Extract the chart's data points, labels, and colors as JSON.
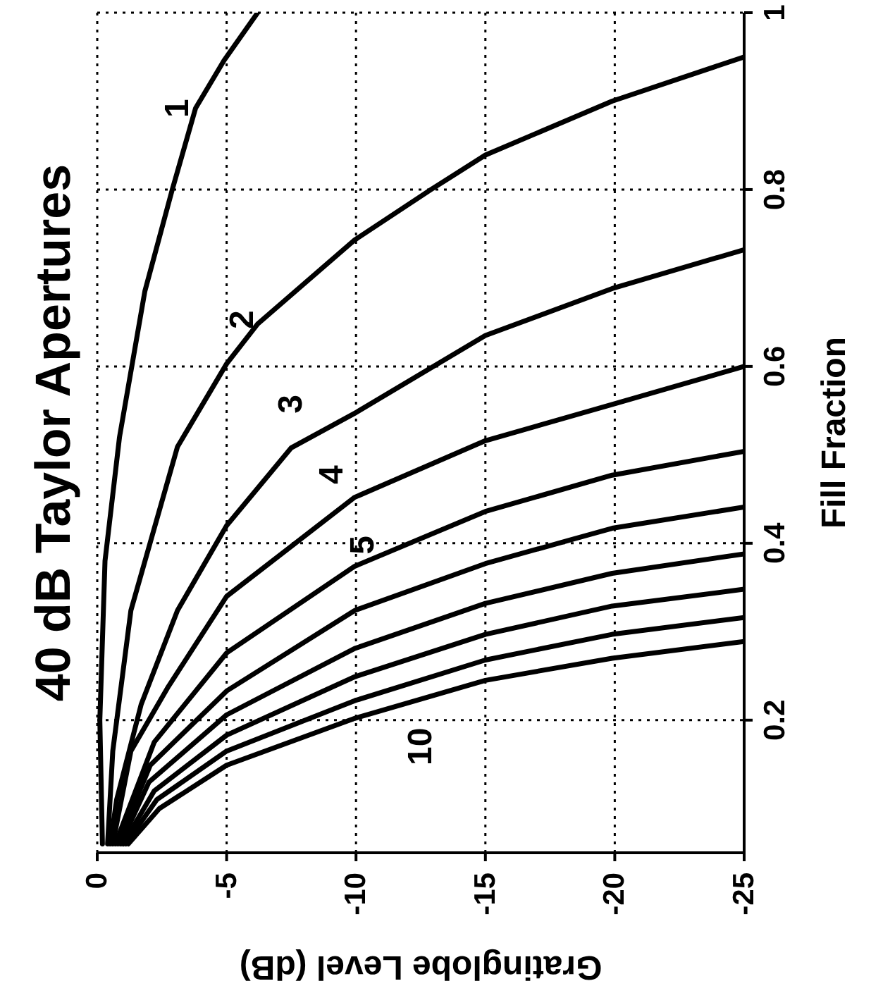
{
  "chart_data": {
    "type": "line",
    "title": "40 dB Taylor Apertures",
    "xlabel": "Gratinglobe Level (dB)",
    "ylabel": "Fill Fraction",
    "xlim": [
      0,
      -25
    ],
    "xticks": [
      0,
      -5,
      -10,
      -15,
      -20,
      -25
    ],
    "ylim": [
      0.05,
      1
    ],
    "yticks": [
      0.2,
      0.4,
      0.6,
      0.8,
      1
    ],
    "grid": true,
    "legend": false,
    "marker": "none",
    "line_style": "solid",
    "series": [
      {
        "name": "1",
        "color": "#000000",
        "values": [
          0.06,
          0.2,
          0.38,
          0.52,
          0.685,
          0.8,
          0.892,
          0.946,
          1.0
        ],
        "x": [
          -0.2,
          -0.1,
          -0.3,
          -0.86,
          -1.84,
          -2.9,
          -3.8,
          -4.9,
          -6.2
        ]
      },
      {
        "name": "2",
        "color": "#000000",
        "values": [
          0.06,
          0.165,
          0.324,
          0.509,
          0.603,
          0.648,
          0.743,
          0.8,
          0.839,
          0.9,
          0.95
        ],
        "x": [
          -0.4,
          -0.6,
          -1.3,
          -3.1,
          -5.0,
          -6.2,
          -9.95,
          -12.9,
          -15.0,
          -19.9,
          -25
        ]
      },
      {
        "name": "3",
        "color": "#000000",
        "values": [
          0.06,
          0.11,
          0.218,
          0.324,
          0.42,
          0.508,
          0.547,
          0.635,
          0.688,
          0.732
        ],
        "x": [
          -0.5,
          -0.75,
          -1.7,
          -3.1,
          -5.0,
          -7.5,
          -9.95,
          -15.0,
          -19.9,
          -25
        ]
      },
      {
        "name": "4",
        "color": "#000000",
        "values": [
          0.06,
          0.165,
          0.238,
          0.34,
          0.452,
          0.516,
          0.557,
          0.6
        ],
        "x": [
          -0.6,
          -1.3,
          -2.75,
          -5.0,
          -9.95,
          -15.0,
          -19.9,
          -25
        ]
      },
      {
        "name": "5",
        "color": "#000000",
        "values": [
          0.06,
          0.175,
          0.276,
          0.374,
          0.436,
          0.477,
          0.504
        ],
        "x": [
          -0.7,
          -2.2,
          -5.0,
          -9.95,
          -15.0,
          -19.9,
          -25
        ]
      },
      {
        "color": "#000000",
        "values": [
          0.06,
          0.149,
          0.233,
          0.324,
          0.377,
          0.417,
          0.441
        ],
        "x": [
          -0.8,
          -2.05,
          -5.0,
          -9.95,
          -15.0,
          -19.9,
          -25
        ]
      },
      {
        "color": "#000000",
        "values": [
          0.06,
          0.13,
          0.206,
          0.281,
          0.332,
          0.366,
          0.388
        ],
        "x": [
          -0.9,
          -2.0,
          -5.0,
          -9.95,
          -15.0,
          -19.9,
          -25
        ]
      },
      {
        "color": "#000000",
        "values": [
          0.06,
          0.12,
          0.183,
          0.249,
          0.297,
          0.329,
          0.348
        ],
        "x": [
          -1.0,
          -2.2,
          -5.0,
          -9.95,
          -15.0,
          -19.9,
          -25
        ]
      },
      {
        "color": "#000000",
        "values": [
          0.06,
          0.11,
          0.165,
          0.222,
          0.268,
          0.297,
          0.316
        ],
        "x": [
          -1.1,
          -2.3,
          -5.0,
          -9.95,
          -15.0,
          -19.9,
          -25
        ]
      },
      {
        "name": "10",
        "color": "#000000",
        "values": [
          0.06,
          0.1,
          0.149,
          0.202,
          0.245,
          0.27,
          0.289
        ],
        "x": [
          -1.2,
          -2.4,
          -5.0,
          -9.95,
          -15.0,
          -19.9,
          -25
        ]
      }
    ]
  }
}
